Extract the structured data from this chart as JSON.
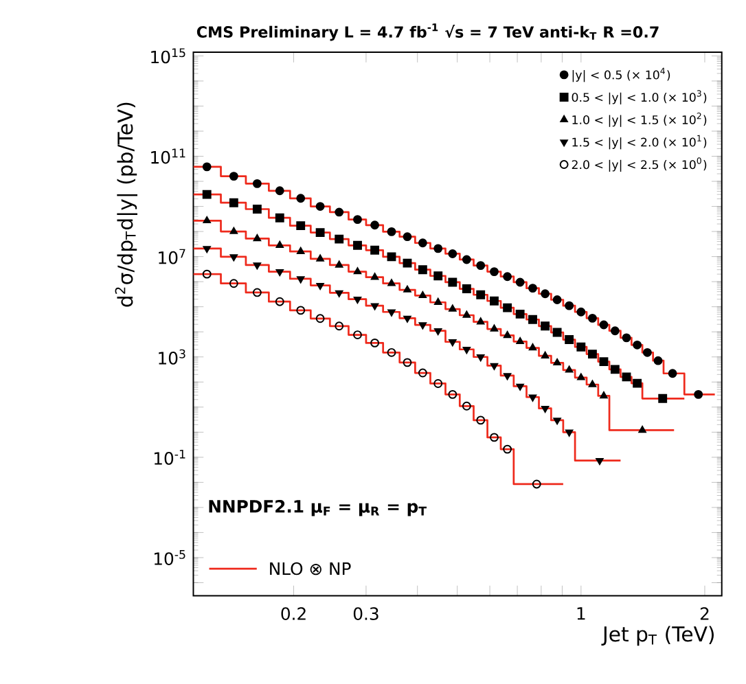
{
  "chart_data": {
    "type": "scatter",
    "title": "CMS Preliminary L = 4.7 fb$^{-1}$  √s = 7 TeV anti-k$_{T}$ R =0.7",
    "xlabel": "Jet p$_{T}$ (TeV)",
    "ylabel": "d$^{2}$σ/dp$_{T}$d|y| (pb/TeV)",
    "log": "xy",
    "xlim": [
      0.114,
      2.2
    ],
    "ylim": [
      3e-07,
      1400000000000000.0
    ],
    "xticks": [
      0.2,
      0.3,
      {
        "value": 0.4,
        "label": null
      },
      {
        "value": 0.5,
        "label": null
      },
      {
        "value": 0.6,
        "label": null
      },
      {
        "value": 0.7,
        "label": null
      },
      {
        "value": 0.8,
        "label": null
      },
      {
        "value": 0.9,
        "label": null
      },
      1,
      2
    ],
    "yticks": [
      {
        "value": 1e-06,
        "label": null
      },
      {
        "value": 1e-05,
        "label": "10$^{-5}$"
      },
      {
        "value": 0.0001,
        "label": null
      },
      {
        "value": 0.001,
        "label": null
      },
      {
        "value": 0.01,
        "label": null
      },
      {
        "value": 0.1,
        "label": "10$^{-1}$"
      },
      {
        "value": 1,
        "label": null
      },
      {
        "value": 10.0,
        "label": null
      },
      {
        "value": 100.0,
        "label": null
      },
      {
        "value": 1000.0,
        "label": "10$^{3}$"
      },
      {
        "value": 10000.0,
        "label": null
      },
      {
        "value": 100000.0,
        "label": null
      },
      {
        "value": 1000000.0,
        "label": null
      },
      {
        "value": 10000000.0,
        "label": "10$^{7}$"
      },
      {
        "value": 100000000.0,
        "label": null
      },
      {
        "value": 1000000000.0,
        "label": null
      },
      {
        "value": 10000000000.0,
        "label": null
      },
      {
        "value": 100000000000.0,
        "label": "10$^{11}$"
      },
      {
        "value": 1000000000000.0,
        "label": null
      },
      {
        "value": 10000000000000.0,
        "label": null
      },
      {
        "value": 100000000000000.0,
        "label": null
      },
      {
        "value": 1000000000000000.0,
        "label": "10$^{15}$"
      }
    ],
    "legend": "top right",
    "annotations": [
      "NNPDF2.1 μ$_{F}$ = μ$_{R}$ = p$_{T}$"
    ],
    "series": [
      {
        "name": "|y| < 0.5 (× 10$^{4}$)",
        "marker": "circle",
        "color": "#000000",
        "x": [
          0.123,
          0.143,
          0.163,
          0.185,
          0.208,
          0.232,
          0.258,
          0.286,
          0.315,
          0.346,
          0.378,
          0.412,
          0.449,
          0.487,
          0.527,
          0.57,
          0.615,
          0.662,
          0.711,
          0.763,
          0.818,
          0.875,
          0.936,
          1.0,
          1.066,
          1.136,
          1.21,
          1.29,
          1.37,
          1.45,
          1.54,
          1.67,
          1.93
        ],
        "values": [
          38000000000.0,
          16000000000.0,
          8100000000.0,
          4200000000.0,
          2100000000.0,
          1000000000.0,
          590000000.0,
          300000000.0,
          180000000.0,
          98000000.0,
          62000000.0,
          35000000.0,
          21000000.0,
          13000000.0,
          7600000.0,
          4400000.0,
          2500000.0,
          1600000.0,
          950000.0,
          550000.0,
          330000.0,
          190000.0,
          110000.0,
          62000.0,
          35000.0,
          19000.0,
          11000.0,
          5800.0,
          3000.0,
          1500.0,
          710,
          220,
          32
        ]
      },
      {
        "name": "0.5 < |y| < 1.0 (× 10$^{3}$)",
        "marker": "square",
        "color": "#000000",
        "x": [
          0.123,
          0.143,
          0.163,
          0.185,
          0.208,
          0.232,
          0.258,
          0.286,
          0.315,
          0.346,
          0.378,
          0.412,
          0.449,
          0.487,
          0.527,
          0.57,
          0.615,
          0.662,
          0.711,
          0.763,
          0.818,
          0.875,
          0.936,
          1.0,
          1.066,
          1.136,
          1.21,
          1.29,
          1.37,
          1.58
        ],
        "values": [
          3000000000.0,
          1400000000.0,
          780000000.0,
          350000000.0,
          170000000.0,
          91000000.0,
          50000000.0,
          28000000.0,
          18000000.0,
          9800000.0,
          5500000.0,
          3000000.0,
          1700000.0,
          950000.0,
          520000.0,
          300000.0,
          170000.0,
          91000.0,
          51000.0,
          31000.0,
          17000.0,
          9500.0,
          4900.0,
          2500.0,
          1300.0,
          650,
          320,
          160,
          89,
          22
        ]
      },
      {
        "name": "1.0 < |y| < 1.5 (× 10$^{2}$)",
        "marker": "triangle",
        "color": "#000000",
        "x": [
          0.123,
          0.143,
          0.163,
          0.185,
          0.208,
          0.232,
          0.258,
          0.286,
          0.315,
          0.346,
          0.378,
          0.412,
          0.449,
          0.487,
          0.527,
          0.57,
          0.615,
          0.662,
          0.711,
          0.763,
          0.818,
          0.875,
          0.936,
          1.0,
          1.066,
          1.136,
          1.41
        ],
        "values": [
          270000000.0,
          100000000.0,
          52000000.0,
          28000000.0,
          16000000.0,
          8100000.0,
          4600000.0,
          2500000.0,
          1500000.0,
          850000.0,
          470000.0,
          280000.0,
          150000.0,
          81000.0,
          46000.0,
          25000.0,
          13000.0,
          7200.0,
          4100.0,
          2300.0,
          1100.0,
          580,
          300,
          150,
          79,
          28,
          1.2
        ]
      },
      {
        "name": "1.5 < |y| < 2.0 (× 10$^{1}$)",
        "marker": "triangle_down",
        "color": "#000000",
        "x": [
          0.123,
          0.143,
          0.163,
          0.185,
          0.208,
          0.232,
          0.258,
          0.286,
          0.315,
          0.346,
          0.378,
          0.412,
          0.449,
          0.487,
          0.527,
          0.57,
          0.615,
          0.662,
          0.711,
          0.763,
          0.818,
          0.875,
          0.936,
          1.11
        ],
        "values": [
          21000000.0,
          9800000.0,
          4600000.0,
          2500000.0,
          1300000.0,
          710000.0,
          360000.0,
          200000.0,
          110000.0,
          62000.0,
          35000.0,
          19000.0,
          11000.0,
          4000.0,
          2000.0,
          1000.0,
          450,
          180,
          68,
          25,
          8.9,
          3.0,
          1.0,
          0.074
        ]
      },
      {
        "name": "2.0 < |y| < 2.5 (× 10$^{0}$)",
        "marker": "circle_open",
        "color": "#000000",
        "x": [
          0.123,
          0.143,
          0.163,
          0.185,
          0.208,
          0.232,
          0.258,
          0.286,
          0.315,
          0.346,
          0.378,
          0.412,
          0.449,
          0.487,
          0.527,
          0.57,
          0.615,
          0.662,
          0.78
        ],
        "values": [
          2000000.0,
          850000.0,
          370000.0,
          160000.0,
          72000.0,
          34000.0,
          17000.0,
          7600.0,
          3600.0,
          1500.0,
          600,
          230,
          87,
          32,
          11,
          3.0,
          0.62,
          0.21,
          0.0085
        ]
      },
      {
        "name": "NLO ⊗ NP",
        "type": "step",
        "color": "#ee2a1c",
        "x": [
          0.114,
          0.133,
          0.153,
          0.174,
          0.196,
          0.22,
          0.245,
          0.272,
          0.3,
          0.33,
          0.362,
          0.395,
          0.43,
          0.468,
          0.507,
          0.548,
          0.592,
          0.638,
          0.686,
          0.737,
          0.79,
          0.846,
          0.905,
          0.967,
          1.032,
          1.101,
          1.172,
          1.248,
          1.327,
          1.41,
          1.497,
          1.588,
          1.784,
          2.116
        ],
        "values": [
          38000000000.0,
          16000000000.0,
          8100000000.0,
          4200000000.0,
          2100000000.0,
          1000000000.0,
          590000000.0,
          300000000.0,
          180000000.0,
          98000000.0,
          62000000.0,
          35000000.0,
          21000000.0,
          13000000.0,
          7600000.0,
          4400000.0,
          2500000.0,
          1600000.0,
          950000.0,
          550000.0,
          330000.0,
          190000.0,
          110000.0,
          62000.0,
          35000.0,
          19000.0,
          11000.0,
          5800.0,
          3000.0,
          1500.0,
          710,
          220,
          32,
          32
        ]
      },
      {
        "type": "step",
        "color": "#ee2a1c",
        "x": [
          0.114,
          0.133,
          0.153,
          0.174,
          0.196,
          0.22,
          0.245,
          0.272,
          0.3,
          0.33,
          0.362,
          0.395,
          0.43,
          0.468,
          0.507,
          0.548,
          0.592,
          0.638,
          0.686,
          0.737,
          0.79,
          0.846,
          0.905,
          0.967,
          1.032,
          1.101,
          1.172,
          1.248,
          1.327,
          1.41,
          1.784
        ],
        "values": [
          3000000000.0,
          1400000000.0,
          780000000.0,
          350000000.0,
          170000000.0,
          91000000.0,
          50000000.0,
          28000000.0,
          18000000.0,
          9800000.0,
          5500000.0,
          3000000.0,
          1700000.0,
          950000.0,
          520000.0,
          300000.0,
          170000.0,
          91000.0,
          51000.0,
          31000.0,
          17000.0,
          9500.0,
          4900.0,
          2500.0,
          1300.0,
          650,
          320,
          160,
          89,
          22,
          22
        ]
      },
      {
        "type": "step",
        "color": "#ee2a1c",
        "x": [
          0.114,
          0.133,
          0.153,
          0.174,
          0.196,
          0.22,
          0.245,
          0.272,
          0.3,
          0.33,
          0.362,
          0.395,
          0.43,
          0.468,
          0.507,
          0.548,
          0.592,
          0.638,
          0.686,
          0.737,
          0.79,
          0.846,
          0.905,
          0.967,
          1.032,
          1.101,
          1.172,
          1.684
        ],
        "values": [
          270000000.0,
          100000000.0,
          52000000.0,
          28000000.0,
          16000000.0,
          8100000.0,
          4600000.0,
          2500000.0,
          1500000.0,
          850000.0,
          470000.0,
          280000.0,
          150000.0,
          81000.0,
          46000.0,
          25000.0,
          13000.0,
          7200.0,
          4100.0,
          2300.0,
          1100.0,
          580,
          300,
          150,
          79,
          28,
          1.2,
          1.2
        ]
      },
      {
        "type": "step",
        "color": "#ee2a1c",
        "x": [
          0.114,
          0.133,
          0.153,
          0.174,
          0.196,
          0.22,
          0.245,
          0.272,
          0.3,
          0.33,
          0.362,
          0.395,
          0.43,
          0.468,
          0.507,
          0.548,
          0.592,
          0.638,
          0.686,
          0.737,
          0.79,
          0.846,
          0.905,
          0.967,
          1.248
        ],
        "values": [
          21000000.0,
          9800000.0,
          4600000.0,
          2500000.0,
          1300000.0,
          710000.0,
          360000.0,
          200000.0,
          110000.0,
          62000.0,
          35000.0,
          19000.0,
          11000.0,
          4000.0,
          2000.0,
          1000.0,
          450,
          180,
          68,
          25,
          8.9,
          3.0,
          1.0,
          0.074,
          0.074
        ]
      },
      {
        "type": "step",
        "color": "#ee2a1c",
        "x": [
          0.114,
          0.133,
          0.153,
          0.174,
          0.196,
          0.22,
          0.245,
          0.272,
          0.3,
          0.33,
          0.362,
          0.395,
          0.43,
          0.468,
          0.507,
          0.548,
          0.592,
          0.638,
          0.686,
          0.905
        ],
        "values": [
          2000000.0,
          850000.0,
          370000.0,
          160000.0,
          72000.0,
          34000.0,
          17000.0,
          7600.0,
          3600.0,
          1500.0,
          600,
          230,
          87,
          32,
          11,
          3.0,
          0.62,
          0.21,
          0.0085,
          0.0085
        ]
      }
    ]
  }
}
